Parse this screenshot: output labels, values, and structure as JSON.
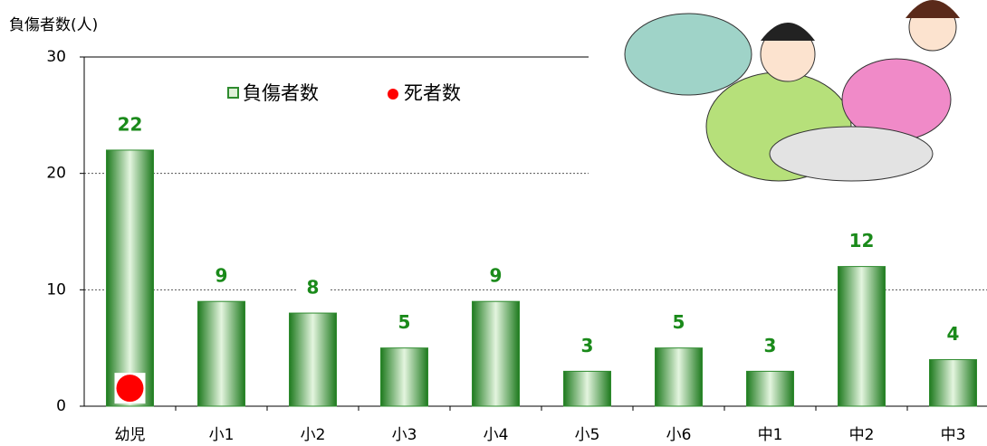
{
  "chart_data": {
    "type": "bar",
    "y_label": "負傷者数(人)",
    "categories": [
      "幼児",
      "小1",
      "小2",
      "小3",
      "小4",
      "小5",
      "小6",
      "中1",
      "中2",
      "中3"
    ],
    "series": [
      {
        "name": "負傷者数",
        "color": "#2e8b2e",
        "values": [
          22,
          9,
          8,
          5,
          9,
          3,
          5,
          3,
          12,
          4
        ]
      },
      {
        "name": "死者数",
        "color": "#ff0000",
        "values": [
          1,
          null,
          null,
          null,
          null,
          null,
          null,
          null,
          null,
          null
        ]
      }
    ],
    "ylim": [
      0,
      30
    ],
    "yticks": [
      0,
      10,
      20,
      30
    ],
    "grid": true
  }
}
